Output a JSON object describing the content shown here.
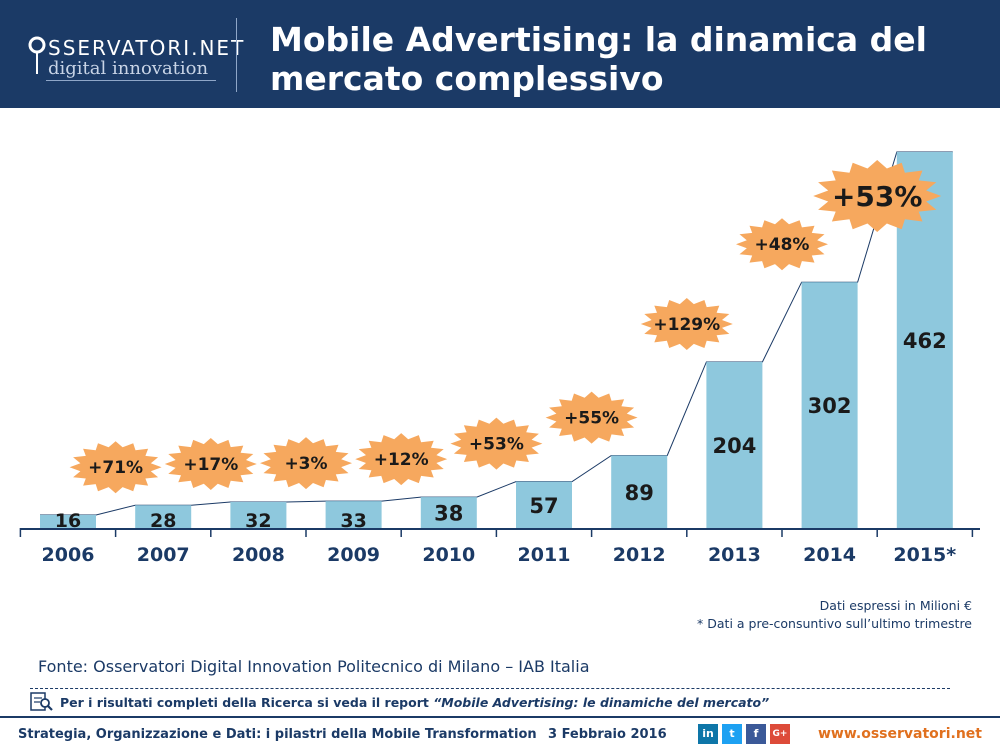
{
  "header": {
    "logo_top": "SSERVATORI.NET",
    "logo_bottom": "digital innovation",
    "title": "Mobile Advertising: la dinamica del mercato complessivo"
  },
  "chart_data": {
    "type": "bar",
    "categories": [
      "2006",
      "2007",
      "2008",
      "2009",
      "2010",
      "2011",
      "2012",
      "2013",
      "2014",
      "2015*"
    ],
    "values": [
      16,
      28,
      32,
      33,
      38,
      57,
      89,
      204,
      302,
      462
    ],
    "growth_labels": [
      "+71%",
      "+17%",
      "+3%",
      "+12%",
      "+53%",
      "+55%",
      "+129%",
      "+48%",
      "+53%"
    ],
    "bar_color": "#8ec8dd",
    "burst_color": "#f6a85e",
    "axis_color": "#1b3a66",
    "title": "",
    "xlabel": "",
    "ylabel": ""
  },
  "notes": {
    "unit": "Dati espressi in Milioni €",
    "preconsuntivo": "* Dati a pre-consuntivo sull’ultimo trimestre"
  },
  "source": "Fonte: Osservatori Digital Innovation Politecnico di Milano – IAB Italia",
  "report": {
    "prefix": "Per i risultati completi della Ricerca si veda il report",
    "title": "“Mobile Advertising: le dinamiche del mercato”"
  },
  "footer": {
    "left": "Strategia, Organizzazione e Dati: i pilastri della Mobile Transformation",
    "date": "3 Febbraio 2016",
    "social": [
      "in",
      "t",
      "f",
      "G+"
    ],
    "url": "www.osservatori.net"
  }
}
